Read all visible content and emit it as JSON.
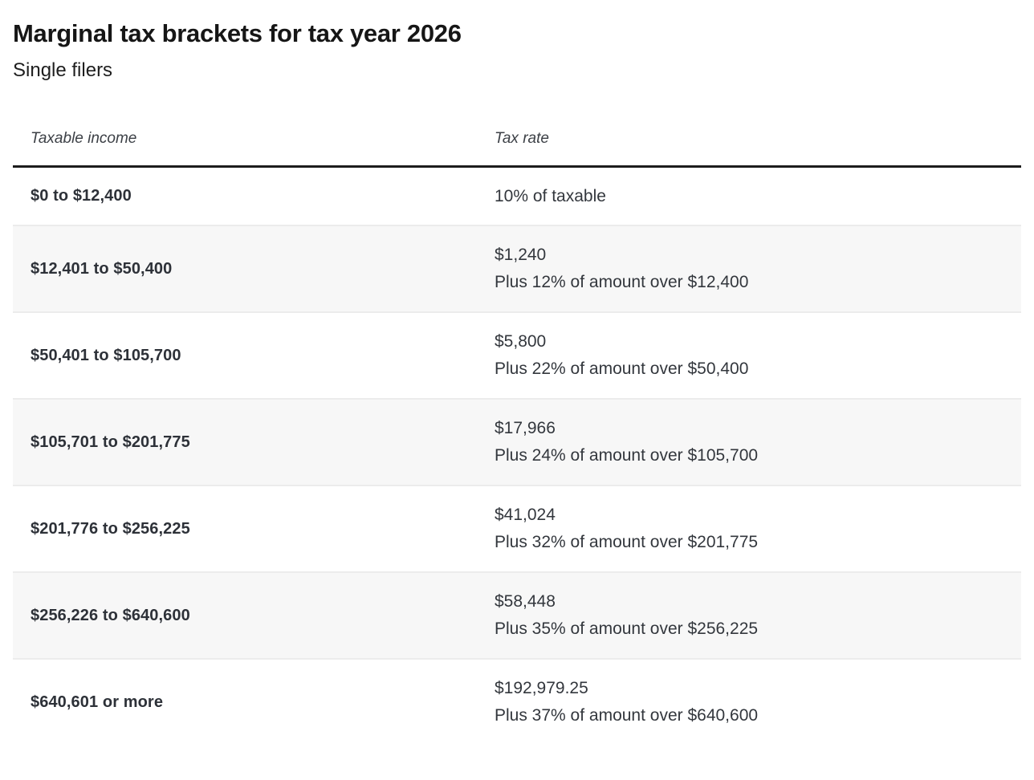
{
  "page": {
    "title": "Marginal tax brackets for tax year 2026",
    "subtitle": "Single filers"
  },
  "table": {
    "columns": [
      {
        "label": "Taxable income"
      },
      {
        "label": "Tax rate"
      }
    ],
    "rows": [
      {
        "income": "$0 to $12,400",
        "rate_lines": [
          "10% of taxable"
        ]
      },
      {
        "income": "$12,401 to $50,400",
        "rate_lines": [
          "$1,240",
          "Plus 12% of amount over $12,400"
        ]
      },
      {
        "income": "$50,401 to $105,700",
        "rate_lines": [
          "$5,800",
          "Plus 22% of amount over $50,400"
        ]
      },
      {
        "income": "$105,701 to $201,775",
        "rate_lines": [
          "$17,966",
          "Plus 24% of amount over $105,700"
        ]
      },
      {
        "income": "$201,776 to $256,225",
        "rate_lines": [
          "$41,024",
          "Plus 32% of amount over $201,775"
        ]
      },
      {
        "income": "$256,226 to $640,600",
        "rate_lines": [
          "$58,448",
          "Plus 35% of amount over $256,225"
        ]
      },
      {
        "income": "$640,601 or more",
        "rate_lines": [
          "$192,979.25",
          "Plus 37% of amount over $640,600"
        ]
      }
    ],
    "colors": {
      "stripe_bg": "#f7f7f7",
      "row_divider": "#ececec",
      "header_rule": "#1c1c1c",
      "title_text": "#161616",
      "cell_text": "#2d3138"
    }
  },
  "chart_data": {
    "type": "table",
    "title": "Marginal tax brackets for tax year 2026",
    "subtitle": "Single filers",
    "columns": [
      "Taxable income",
      "Tax rate"
    ],
    "rows": [
      [
        "$0 to $12,400",
        "10% of taxable"
      ],
      [
        "$12,401 to $50,400",
        "$1,240 Plus 12% of amount over $12,400"
      ],
      [
        "$50,401 to $105,700",
        "$5,800 Plus 22% of amount over $50,400"
      ],
      [
        "$105,701 to $201,775",
        "$17,966 Plus 24% of amount over $105,700"
      ],
      [
        "$201,776 to $256,225",
        "$41,024 Plus 32% of amount over $201,775"
      ],
      [
        "$256,226 to $640,600",
        "$58,448 Plus 35% of amount over $256,225"
      ],
      [
        "$640,601 or more",
        "$192,979.25 Plus 37% of amount over $640,600"
      ]
    ],
    "brackets": [
      {
        "rate_pct": 10,
        "lower": 0,
        "upper": 12400,
        "base_tax": 0
      },
      {
        "rate_pct": 12,
        "lower": 12401,
        "upper": 50400,
        "base_tax": 1240
      },
      {
        "rate_pct": 22,
        "lower": 50401,
        "upper": 105700,
        "base_tax": 5800
      },
      {
        "rate_pct": 24,
        "lower": 105701,
        "upper": 201775,
        "base_tax": 17966
      },
      {
        "rate_pct": 32,
        "lower": 201776,
        "upper": 256225,
        "base_tax": 41024
      },
      {
        "rate_pct": 35,
        "lower": 256226,
        "upper": 640600,
        "base_tax": 58448
      },
      {
        "rate_pct": 37,
        "lower": 640601,
        "upper": null,
        "base_tax": 192979.25
      }
    ]
  }
}
